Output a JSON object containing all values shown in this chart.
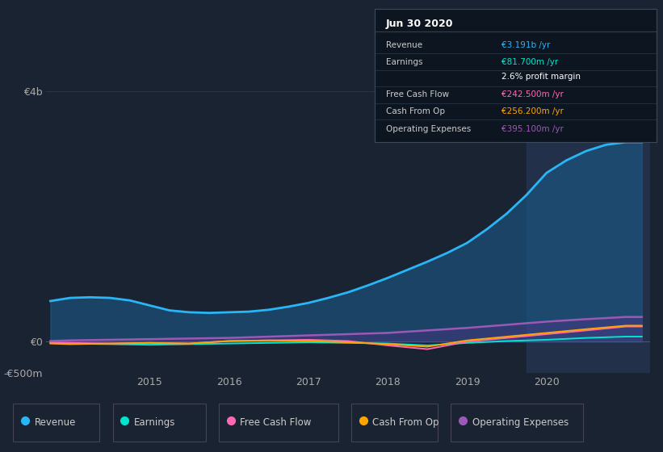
{
  "bg_color": "#1a2332",
  "plot_bg_color": "#1a2332",
  "grid_color": "#2a3a4a",
  "title_box_bg": "#0d1620",
  "title_box_date": "Jun 30 2020",
  "title_rows": [
    {
      "label": "Revenue",
      "value": "€3.191b /yr",
      "value_color": "#29b6f6"
    },
    {
      "label": "Earnings",
      "value": "€81.700m /yr",
      "value_color": "#00e5cc"
    },
    {
      "label": "",
      "value": "2.6% profit margin",
      "value_color": "#ffffff"
    },
    {
      "label": "Free Cash Flow",
      "value": "€242.500m /yr",
      "value_color": "#ff69b4"
    },
    {
      "label": "Cash From Op",
      "value": "€256.200m /yr",
      "value_color": "#ffa500"
    },
    {
      "label": "Operating Expenses",
      "value": "€395.100m /yr",
      "value_color": "#9b59b6"
    }
  ],
  "legend": [
    {
      "label": "Revenue",
      "color": "#29b6f6"
    },
    {
      "label": "Earnings",
      "color": "#00e5cc"
    },
    {
      "label": "Free Cash Flow",
      "color": "#ff69b4"
    },
    {
      "label": "Cash From Op",
      "color": "#ffa500"
    },
    {
      "label": "Operating Expenses",
      "color": "#9b59b6"
    }
  ],
  "ylim": [
    -500,
    4200
  ],
  "xlim": [
    2013.7,
    2021.3
  ],
  "xticks": [
    2015,
    2016,
    2017,
    2018,
    2019,
    2020
  ],
  "ytick_vals": [
    -500,
    0,
    4000
  ],
  "ytick_labels": [
    "-€500m",
    "€0",
    "€4b"
  ],
  "revenue": {
    "x": [
      2013.75,
      2014.0,
      2014.25,
      2014.5,
      2014.75,
      2015.0,
      2015.25,
      2015.5,
      2015.75,
      2016.0,
      2016.25,
      2016.5,
      2016.75,
      2017.0,
      2017.25,
      2017.5,
      2017.75,
      2018.0,
      2018.25,
      2018.5,
      2018.75,
      2019.0,
      2019.25,
      2019.5,
      2019.75,
      2020.0,
      2020.25,
      2020.5,
      2020.75,
      2021.0,
      2021.2
    ],
    "y": [
      650,
      700,
      710,
      700,
      660,
      580,
      500,
      470,
      460,
      470,
      480,
      510,
      560,
      620,
      700,
      790,
      900,
      1020,
      1150,
      1280,
      1420,
      1580,
      1800,
      2050,
      2350,
      2700,
      2900,
      3050,
      3150,
      3191,
      3191
    ],
    "color": "#29b6f6",
    "fill_color": "#1a5a8a",
    "fill_alpha": 0.6
  },
  "earnings": {
    "x": [
      2013.75,
      2014.0,
      2014.5,
      2015.0,
      2015.5,
      2016.0,
      2016.5,
      2017.0,
      2017.5,
      2018.0,
      2018.5,
      2019.0,
      2019.5,
      2020.0,
      2020.5,
      2021.0,
      2021.2
    ],
    "y": [
      -20,
      -30,
      -40,
      -50,
      -40,
      -30,
      -20,
      -10,
      -20,
      -30,
      -60,
      -20,
      10,
      30,
      60,
      81,
      81
    ],
    "color": "#00e5cc"
  },
  "free_cash_flow": {
    "x": [
      2013.75,
      2014.0,
      2014.5,
      2015.0,
      2015.5,
      2016.0,
      2016.5,
      2017.0,
      2017.5,
      2018.0,
      2018.5,
      2019.0,
      2019.5,
      2020.0,
      2020.5,
      2021.0,
      2021.2
    ],
    "y": [
      -10,
      -20,
      -30,
      -20,
      -30,
      10,
      20,
      30,
      10,
      -60,
      -120,
      0,
      60,
      120,
      180,
      242,
      242
    ],
    "color": "#ff69b4"
  },
  "cash_from_op": {
    "x": [
      2013.75,
      2014.0,
      2014.5,
      2015.0,
      2015.5,
      2016.0,
      2016.5,
      2017.0,
      2017.5,
      2018.0,
      2018.5,
      2019.0,
      2019.5,
      2020.0,
      2020.5,
      2021.0,
      2021.2
    ],
    "y": [
      -30,
      -40,
      -30,
      -20,
      -30,
      10,
      20,
      10,
      -10,
      -40,
      -80,
      20,
      80,
      140,
      200,
      256,
      256
    ],
    "color": "#ffa500"
  },
  "operating_expenses": {
    "x": [
      2013.75,
      2014.0,
      2014.5,
      2015.0,
      2015.5,
      2016.0,
      2016.5,
      2017.0,
      2017.5,
      2018.0,
      2018.5,
      2019.0,
      2019.5,
      2020.0,
      2020.5,
      2021.0,
      2021.2
    ],
    "y": [
      10,
      20,
      30,
      40,
      50,
      60,
      80,
      100,
      120,
      140,
      180,
      220,
      270,
      320,
      360,
      395,
      395
    ],
    "color": "#9b59b6"
  },
  "highlight_x_start": 2019.75,
  "highlight_x_end": 2021.3,
  "highlight_color": "#253550",
  "highlight_alpha": 0.8
}
